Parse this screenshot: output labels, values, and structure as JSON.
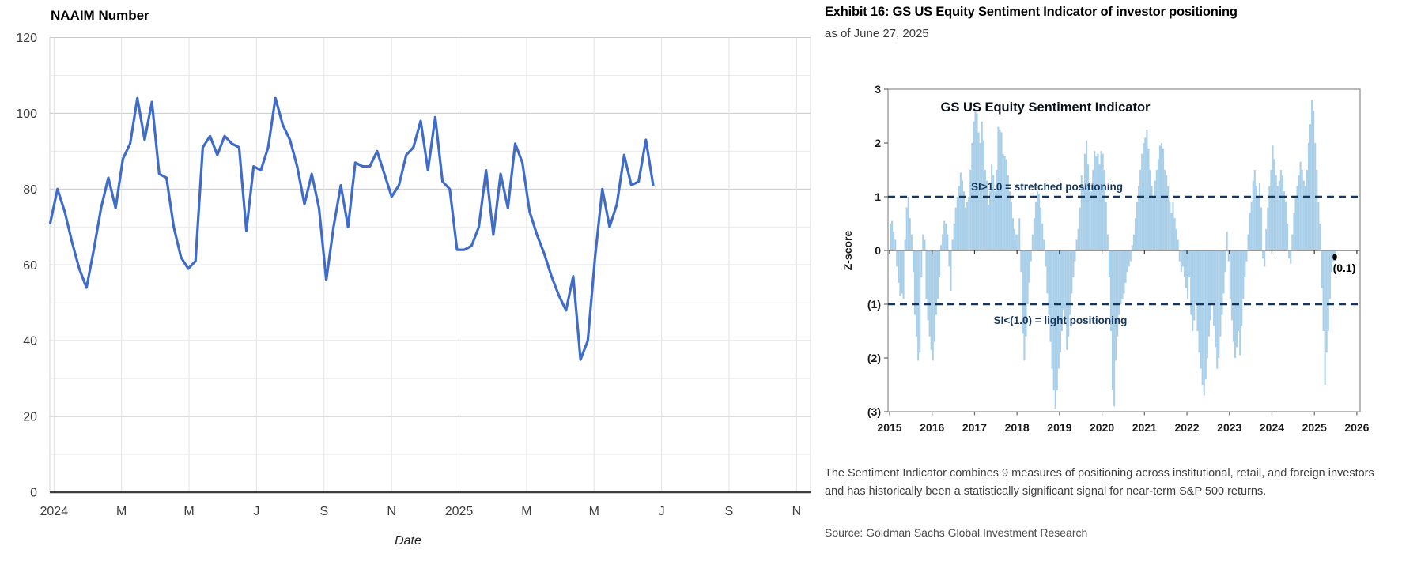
{
  "right_panel": {
    "exhibit_title": "Exhibit 16: GS US Equity Sentiment Indicator of investor positioning",
    "as_of": "as of June 27, 2025",
    "caption": "The Sentiment Indicator combines 9 measures of positioning across institutional, retail, and foreign investors and has historically been a statistically significant signal for near-term S&P 500 returns.",
    "source": "Source: Goldman Sachs Global Investment Research"
  },
  "chart_data": [
    {
      "type": "line",
      "title": "NAAIM Number",
      "xlabel": "Date",
      "ylabel": "",
      "ylim": [
        0,
        120
      ],
      "yticks": [
        0,
        20,
        40,
        60,
        80,
        100,
        120
      ],
      "xtick_labels": [
        "2024",
        "M",
        "M",
        "J",
        "S",
        "N",
        "2025",
        "M",
        "M",
        "J",
        "S",
        "N"
      ],
      "x_note": "weekly data, Jan 2024 through early Jul 2025; ticks every 2 months",
      "grid": "on",
      "line_color": "#3e6cc8",
      "axis_color": "#3d3d3d",
      "values": [
        71,
        80,
        74,
        66,
        59,
        54,
        64,
        75,
        83,
        75,
        88,
        92,
        104,
        93,
        103,
        84,
        83,
        70,
        62,
        59,
        61,
        91,
        94,
        89,
        94,
        92,
        91,
        69,
        86,
        85,
        91,
        104,
        97,
        93,
        86,
        76,
        84,
        75,
        56,
        70,
        81,
        70,
        87,
        86,
        86,
        90,
        84,
        78,
        81,
        89,
        91,
        98,
        85,
        99,
        82,
        80,
        64,
        64,
        65,
        70,
        85,
        68,
        84,
        75,
        92,
        87,
        74,
        68,
        63,
        57,
        52,
        48,
        57,
        35,
        40,
        62,
        80,
        70,
        76,
        89,
        81,
        82,
        93,
        81
      ]
    },
    {
      "type": "bar",
      "title": "GS US Equity Sentiment Indicator",
      "ylabel": "Z-score",
      "ylim": [
        -3,
        3
      ],
      "ytick_labels": [
        "3",
        "2",
        "1",
        "0",
        "(1)",
        "(2)",
        "(3)"
      ],
      "xtick_labels": [
        "2015",
        "2016",
        "2017",
        "2018",
        "2019",
        "2020",
        "2021",
        "2022",
        "2023",
        "2024",
        "2025",
        "2026"
      ],
      "start_year": 2015,
      "samples_per_year": 26,
      "grid": "off",
      "bar_color": "#a9cfe9",
      "dash_line_color": "#17365d",
      "upper_threshold": 1.0,
      "lower_threshold": -1.0,
      "upper_annotation": "SI>1.0 = stretched positioning",
      "lower_annotation": "SI<(1.0) = light positioning",
      "last_point_label": "(0.1)",
      "last_point_value": -0.1,
      "values": [
        0.5,
        0.55,
        0.35,
        0.2,
        -0.3,
        -0.6,
        -0.85,
        -0.8,
        -0.9,
        0.2,
        0.8,
        1.0,
        0.6,
        0.3,
        -0.4,
        -1.2,
        -1.6,
        -2.05,
        -1.9,
        -0.5,
        0.3,
        0.2,
        -0.9,
        -1.3,
        -1.6,
        -1.85,
        -2.05,
        -1.7,
        -1.2,
        -0.9,
        -0.5,
        0.1,
        0.3,
        0.55,
        0.5,
        0.3,
        -0.3,
        -0.75,
        0.2,
        0.5,
        0.8,
        1.0,
        1.2,
        1.45,
        1.3,
        1.1,
        0.8,
        0.9,
        1.0,
        1.5,
        2.0,
        2.4,
        2.6,
        2.55,
        2.2,
        2.0,
        2.4,
        2.05,
        1.5,
        1.3,
        0.85,
        1.1,
        1.6,
        1.4,
        1.1,
        1.5,
        2.3,
        2.25,
        2.2,
        1.8,
        1.75,
        1.7,
        1.4,
        1.1,
        0.9,
        0.6,
        0.4,
        0.3,
        0.3,
        0.6,
        -0.4,
        -1.55,
        -2.05,
        -1.6,
        -1.0,
        -0.6,
        -0.2,
        0.3,
        0.6,
        0.9,
        1.1,
        1.05,
        0.8,
        0.5,
        0.2,
        -0.3,
        -0.8,
        -1.2,
        -1.7,
        -2.2,
        -2.6,
        -2.95,
        -2.6,
        -2.2,
        -1.9,
        -1.5,
        -1.1,
        -1.3,
        -1.85,
        -1.6,
        -1.2,
        -0.8,
        -0.5,
        -0.2,
        0.2,
        0.4,
        0.8,
        1.4,
        1.2,
        1.8,
        2.05,
        1.6,
        1.2,
        1.1,
        1.5,
        1.85,
        1.75,
        1.8,
        1.6,
        1.85,
        1.8,
        1.5,
        0.9,
        0.3,
        -0.5,
        -1.5,
        -2.6,
        -2.9,
        -2.05,
        -1.6,
        -1.2,
        -1.0,
        -0.9,
        -0.8,
        -0.6,
        -0.4,
        -0.3,
        -0.2,
        0.1,
        0.3,
        0.6,
        0.9,
        1.2,
        1.5,
        1.8,
        2.0,
        2.1,
        2.25,
        1.9,
        1.5,
        1.2,
        1.0,
        1.3,
        1.5,
        1.7,
        1.95,
        2.0,
        1.9,
        1.5,
        1.4,
        1.2,
        0.9,
        0.7,
        0.9,
        0.6,
        0.4,
        0.2,
        -0.2,
        -0.4,
        -0.3,
        -0.5,
        -0.7,
        -0.9,
        -0.5,
        -1.2,
        -1.5,
        -1.3,
        -1.0,
        -1.5,
        -1.9,
        -2.2,
        -2.5,
        -2.7,
        -2.4,
        -2.0,
        -1.6,
        -1.3,
        -1.0,
        -1.4,
        -1.8,
        -2.2,
        -2.0,
        -1.6,
        -1.2,
        -0.8,
        -0.4,
        0.35,
        -0.2,
        -0.9,
        -1.3,
        -1.7,
        -2.0,
        -1.8,
        -1.5,
        -1.95,
        -1.4,
        -0.9,
        -0.5,
        -0.2,
        0.3,
        0.7,
        0.9,
        1.3,
        1.5,
        1.2,
        1.0,
        1.25,
        0.8,
        -0.15,
        -0.3,
        0.4,
        0.8,
        1.2,
        1.5,
        1.95,
        1.7,
        1.4,
        1.2,
        1.3,
        1.5,
        1.4,
        1.1,
        0.9,
        0.5,
        -0.15,
        -0.25,
        0.3,
        0.7,
        1.0,
        1.2,
        1.4,
        1.65,
        1.5,
        1.3,
        1.2,
        1.5,
        2.0,
        2.35,
        2.8,
        2.6,
        2.0,
        1.5,
        0.9,
        0.5,
        -0.7,
        -1.5,
        -2.5,
        -1.9,
        -1.5,
        -0.9,
        -0.4,
        -0.2,
        -0.1
      ]
    }
  ]
}
